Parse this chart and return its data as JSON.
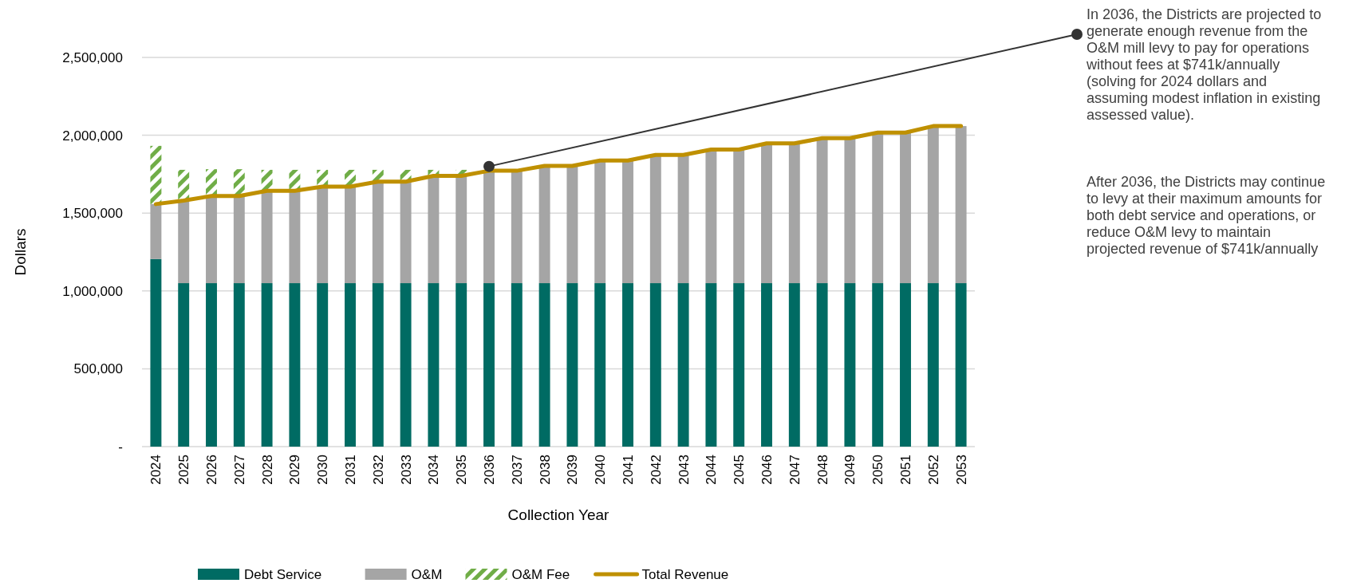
{
  "chart_data": {
    "type": "bar",
    "stacked": true,
    "xlabel": "Collection Year",
    "ylabel": "Dollars",
    "categories": [
      "2024",
      "2025",
      "2026",
      "2027",
      "2028",
      "2029",
      "2030",
      "2031",
      "2032",
      "2033",
      "2034",
      "2035",
      "2036",
      "2037",
      "2038",
      "2039",
      "2040",
      "2041",
      "2042",
      "2043",
      "2044",
      "2045",
      "2046",
      "2047",
      "2048",
      "2049",
      "2050",
      "2051",
      "2052",
      "2053"
    ],
    "series": [
      {
        "name": "Debt Service",
        "color": "#006b63",
        "values": [
          1205000,
          1050000,
          1050000,
          1050000,
          1050000,
          1050000,
          1050000,
          1050000,
          1050000,
          1050000,
          1050000,
          1050000,
          1050000,
          1050000,
          1050000,
          1050000,
          1050000,
          1050000,
          1050000,
          1050000,
          1050000,
          1050000,
          1050000,
          1050000,
          1050000,
          1050000,
          1050000,
          1050000,
          1050000,
          1050000
        ]
      },
      {
        "name": "O&M",
        "color": "#a5a5a5",
        "values": [
          353000,
          530000,
          560000,
          560000,
          593000,
          593000,
          620000,
          620000,
          652000,
          652000,
          689000,
          689000,
          722000,
          722000,
          753000,
          753000,
          788000,
          788000,
          824000,
          824000,
          858000,
          858000,
          898000,
          898000,
          931000,
          931000,
          967000,
          967000,
          1009000,
          1009000
        ]
      },
      {
        "name": "O&M Fee",
        "color": "#70ad47",
        "values": [
          374000,
          198000,
          172000,
          172000,
          135000,
          135000,
          108000,
          108000,
          76000,
          76000,
          39000,
          39000,
          null,
          null,
          null,
          null,
          null,
          null,
          null,
          null,
          null,
          null,
          null,
          null,
          null,
          null,
          null,
          null,
          null,
          null
        ]
      },
      {
        "name": "Total Revenue",
        "type": "line",
        "color": "#bf9000",
        "values": [
          1558000,
          1580000,
          1610000,
          1610000,
          1643000,
          1643000,
          1670000,
          1670000,
          1702000,
          1702000,
          1739000,
          1739000,
          1772000,
          1772000,
          1803000,
          1803000,
          1838000,
          1838000,
          1874000,
          1874000,
          1908000,
          1908000,
          1948000,
          1948000,
          1981000,
          1981000,
          2017000,
          2017000,
          2059000,
          2059000
        ]
      }
    ],
    "ylim": [
      0,
      2500000
    ],
    "yticks": [
      {
        "value": 0,
        "label": "-"
      },
      {
        "value": 500000,
        "label": "500,000"
      },
      {
        "value": 1000000,
        "label": "1,000,000"
      },
      {
        "value": 1500000,
        "label": "1,500,000"
      },
      {
        "value": 2000000,
        "label": "2,000,000"
      },
      {
        "value": 2500000,
        "label": "2,500,000"
      }
    ],
    "grid": "y",
    "legend": "bottom",
    "marker": "none",
    "line_style": "solid",
    "annotations": [
      {
        "text": "In 2036, the Districts are projected to generate enough revenue from the O&M mill levy to pay for operations without fees at $741k/annually (solving for 2024 dollars and assuming modest inflation in existing assessed value).",
        "x": "2036",
        "y": 1800000
      },
      "After 2036, the Districts may continue to levy at their maximum amounts for both debt service and operations, or reduce O&M levy to maintain projected revenue of $741k/annually"
    ]
  }
}
